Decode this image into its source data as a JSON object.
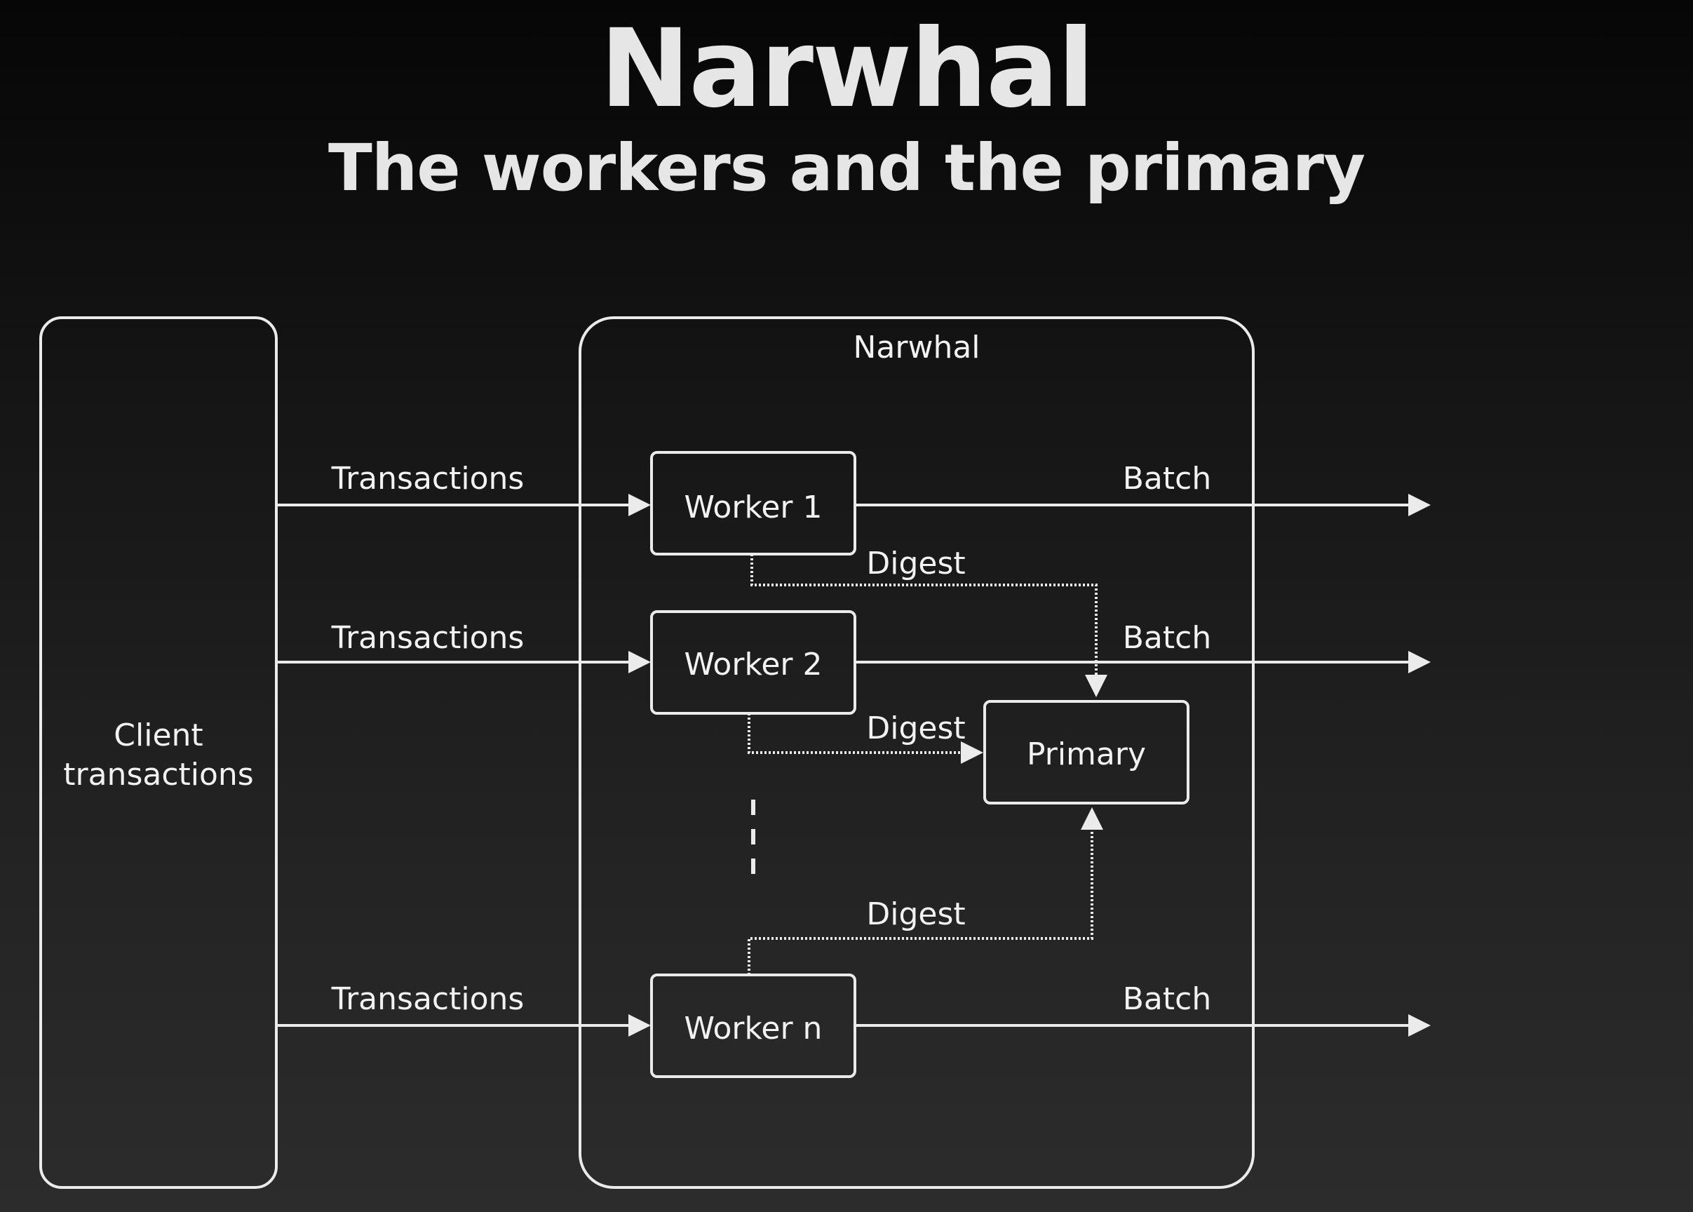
{
  "slide": {
    "title": "Narwhal",
    "subtitle": "The workers and the primary"
  },
  "diagram": {
    "client_box": {
      "line1": "Client",
      "line2": "transactions"
    },
    "narwhal_group": "Narwhal",
    "workers": [
      "Worker 1",
      "Worker 2",
      "Worker n"
    ],
    "primary": "Primary",
    "edge_labels": {
      "transactions": "Transactions",
      "batch": "Batch",
      "digest": "Digest"
    },
    "colors": {
      "stroke": "#ebebeb",
      "text": "#f2f2f2"
    }
  }
}
